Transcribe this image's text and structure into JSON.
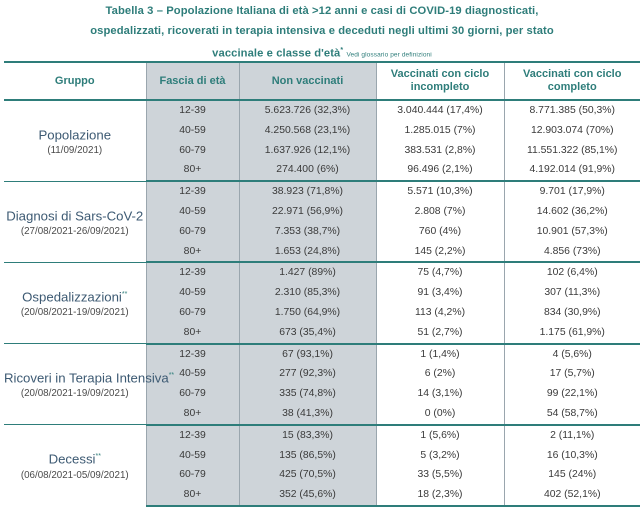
{
  "title": {
    "line1": "Tabella 3 – Popolazione Italiana di età >12 anni e casi di COVID-19 diagnosticati,",
    "line2": "ospedalizzati, ricoverati in terapia intensiva e deceduti negli ultimi 30 giorni, per stato",
    "line3": "vaccinale e classe d'età",
    "line3_sup": "*",
    "note": "Vedi glossario per definizioni"
  },
  "headers": {
    "gruppo": "Gruppo",
    "fascia": "Fascia di età",
    "non_vacc": "Non vaccinati",
    "incompleto": "Vaccinati con ciclo incompleto",
    "completo": "Vaccinati con ciclo completo"
  },
  "groups": [
    {
      "name": "Popolazione",
      "sup": "",
      "date": "(11/09/2021)",
      "rows": [
        {
          "age": "12-39",
          "non_vacc": "5.623.726 (32,3%)",
          "incompleto": "3.040.444 (17,4%)",
          "completo": "8.771.385 (50,3%)"
        },
        {
          "age": "40-59",
          "non_vacc": "4.250.568 (23,1%)",
          "incompleto": "1.285.015 (7%)",
          "completo": "12.903.074 (70%)"
        },
        {
          "age": "60-79",
          "non_vacc": "1.637.926 (12,1%)",
          "incompleto": "383.531 (2,8%)",
          "completo": "11.551.322 (85,1%)"
        },
        {
          "age": "80+",
          "non_vacc": "274.400 (6%)",
          "incompleto": "96.496 (2,1%)",
          "completo": "4.192.014 (91,9%)"
        }
      ]
    },
    {
      "name": "Diagnosi di Sars-CoV-2",
      "sup": "",
      "date": "(27/08/2021-26/09/2021)",
      "rows": [
        {
          "age": "12-39",
          "non_vacc": "38.923 (71,8%)",
          "incompleto": "5.571 (10,3%)",
          "completo": "9.701 (17,9%)"
        },
        {
          "age": "40-59",
          "non_vacc": "22.971 (56,9%)",
          "incompleto": "2.808 (7%)",
          "completo": "14.602 (36,2%)"
        },
        {
          "age": "60-79",
          "non_vacc": "7.353 (38,7%)",
          "incompleto": "760 (4%)",
          "completo": "10.901 (57,3%)"
        },
        {
          "age": "80+",
          "non_vacc": "1.653 (24,8%)",
          "incompleto": "145 (2,2%)",
          "completo": "4.856 (73%)"
        }
      ]
    },
    {
      "name": "Ospedalizzazioni",
      "sup": "**",
      "date": "(20/08/2021-19/09/2021)",
      "rows": [
        {
          "age": "12-39",
          "non_vacc": "1.427 (89%)",
          "incompleto": "75 (4,7%)",
          "completo": "102 (6,4%)"
        },
        {
          "age": "40-59",
          "non_vacc": "2.310 (85,3%)",
          "incompleto": "91 (3,4%)",
          "completo": "307 (11,3%)"
        },
        {
          "age": "60-79",
          "non_vacc": "1.750 (64,9%)",
          "incompleto": "113 (4,2%)",
          "completo": "834 (30,9%)"
        },
        {
          "age": "80+",
          "non_vacc": "673 (35,4%)",
          "incompleto": "51 (2,7%)",
          "completo": "1.175 (61,9%)"
        }
      ]
    },
    {
      "name": "Ricoveri in Terapia Intensiva",
      "sup": "**",
      "date": "(20/08/2021-19/09/2021)",
      "rows": [
        {
          "age": "12-39",
          "non_vacc": "67 (93,1%)",
          "incompleto": "1 (1,4%)",
          "completo": "4 (5,6%)"
        },
        {
          "age": "40-59",
          "non_vacc": "277 (92,3%)",
          "incompleto": "6 (2%)",
          "completo": "17 (5,7%)"
        },
        {
          "age": "60-79",
          "non_vacc": "335 (74,8%)",
          "incompleto": "14 (3,1%)",
          "completo": "99 (22,1%)"
        },
        {
          "age": "80+",
          "non_vacc": "38 (41,3%)",
          "incompleto": "0 (0%)",
          "completo": "54 (58,7%)"
        }
      ]
    },
    {
      "name": "Decessi",
      "sup": "**",
      "date": "(06/08/2021-05/09/2021)",
      "rows": [
        {
          "age": "12-39",
          "non_vacc": "15 (83,3%)",
          "incompleto": "1 (5,6%)",
          "completo": "2 (11,1%)"
        },
        {
          "age": "40-59",
          "non_vacc": "135 (86,5%)",
          "incompleto": "5 (3,2%)",
          "completo": "16 (10,3%)"
        },
        {
          "age": "60-79",
          "non_vacc": "425 (70,5%)",
          "incompleto": "33 (5,5%)",
          "completo": "145 (24%)"
        },
        {
          "age": "80+",
          "non_vacc": "352 (45,6%)",
          "incompleto": "18 (2,3%)",
          "completo": "402 (52,1%)"
        }
      ]
    }
  ]
}
